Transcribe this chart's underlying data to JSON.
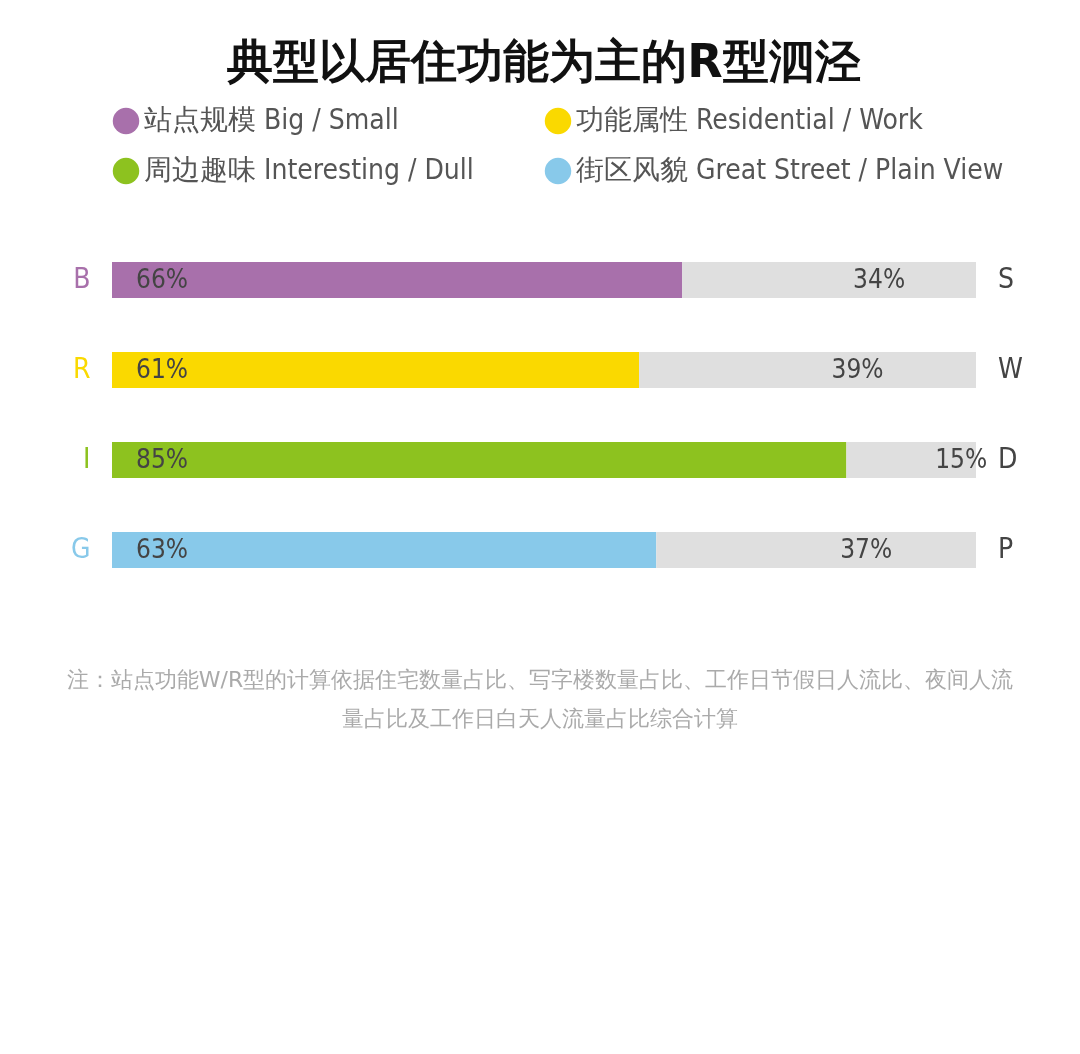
{
  "chart_data": {
    "type": "bar",
    "title": "典型以居住功能为主的R型泗泾",
    "orientation": "horizontal",
    "stacked": true,
    "legend": "top",
    "categories": [
      "B",
      "R",
      "I",
      "G"
    ],
    "series": [
      {
        "name": "站点规模 Big / Small",
        "color": "#a870ab",
        "values": [
          66,
          null,
          null,
          null
        ],
        "value_labels": [
          "66%",
          null,
          null,
          null
        ]
      },
      {
        "name": "功能属性 Residential / Work",
        "color": "#fad900",
        "values": [
          null,
          61,
          null,
          null
        ],
        "value_labels": [
          null,
          "61%",
          null,
          null
        ]
      },
      {
        "name": "周边趣味 Interesting / Dull",
        "color": "#8dc21f",
        "values": [
          null,
          null,
          85,
          null
        ],
        "value_labels": [
          null,
          null,
          "85%",
          null
        ]
      },
      {
        "name": "街区风貌 Great Street / Plain View",
        "color": "#88c9ea",
        "values": [
          null,
          null,
          null,
          63
        ],
        "value_labels": [
          null,
          null,
          null,
          "63%"
        ]
      },
      {
        "color": "#dfdfdf",
        "values": [
          34,
          39,
          15,
          37
        ],
        "value_labels": [
          "34%",
          "39%",
          "15%",
          "37%"
        ]
      }
    ],
    "annotations": [
      "S",
      "W",
      "D",
      "P",
      "注：站点功能W/R型的计算依据住宅数量占比、写字楼数量占比、工作日节假日人流比、夜间人流量占比及工作日白天人流量占比综合计算"
    ]
  }
}
